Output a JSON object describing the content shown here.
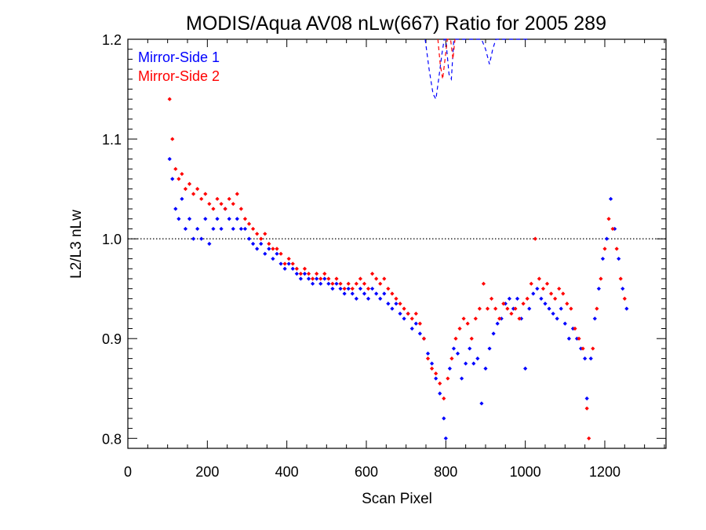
{
  "chart_data": {
    "type": "scatter",
    "title": "MODIS/Aqua AV08 nLw(667) Ratio for 2005 289",
    "xlabel": "Scan Pixel",
    "ylabel": "L2/L3 nLw",
    "xlim": [
      0,
      1354
    ],
    "ylim": [
      0.79,
      1.2
    ],
    "xticks": [
      0,
      200,
      400,
      600,
      800,
      1000,
      1200
    ],
    "yticks": [
      0.8,
      0.9,
      1.0,
      1.1,
      1.2
    ],
    "xtick_labels": [
      "0",
      "200",
      "400",
      "600",
      "800",
      "1000",
      "1200"
    ],
    "ytick_labels": [
      "0.8",
      "0.9",
      "1.0",
      "1.1",
      "1.2"
    ],
    "reference_line": {
      "y": 1.0,
      "style": "dotted",
      "color": "#000000"
    },
    "legend_position": "top-left",
    "series": [
      {
        "name": "Mirror-Side 1",
        "color": "#0000ff",
        "points": [
          [
            105,
            1.08
          ],
          [
            112,
            1.06
          ],
          [
            120,
            1.03
          ],
          [
            128,
            1.02
          ],
          [
            136,
            1.04
          ],
          [
            145,
            1.01
          ],
          [
            155,
            1.02
          ],
          [
            165,
            1.0
          ],
          [
            175,
            1.01
          ],
          [
            185,
            1.0
          ],
          [
            195,
            1.02
          ],
          [
            205,
            0.995
          ],
          [
            215,
            1.01
          ],
          [
            225,
            1.02
          ],
          [
            235,
            1.01
          ],
          [
            245,
            1.03
          ],
          [
            255,
            1.02
          ],
          [
            265,
            1.01
          ],
          [
            275,
            1.02
          ],
          [
            285,
            1.01
          ],
          [
            295,
            1.01
          ],
          [
            305,
            1.0
          ],
          [
            315,
            0.995
          ],
          [
            325,
            0.99
          ],
          [
            335,
            0.995
          ],
          [
            345,
            0.985
          ],
          [
            355,
            0.99
          ],
          [
            365,
            0.98
          ],
          [
            375,
            0.985
          ],
          [
            385,
            0.975
          ],
          [
            395,
            0.97
          ],
          [
            405,
            0.975
          ],
          [
            415,
            0.97
          ],
          [
            425,
            0.965
          ],
          [
            435,
            0.96
          ],
          [
            445,
            0.965
          ],
          [
            455,
            0.96
          ],
          [
            465,
            0.955
          ],
          [
            475,
            0.96
          ],
          [
            485,
            0.955
          ],
          [
            495,
            0.96
          ],
          [
            505,
            0.955
          ],
          [
            515,
            0.95
          ],
          [
            525,
            0.955
          ],
          [
            535,
            0.95
          ],
          [
            545,
            0.945
          ],
          [
            555,
            0.95
          ],
          [
            565,
            0.945
          ],
          [
            575,
            0.94
          ],
          [
            585,
            0.95
          ],
          [
            595,
            0.945
          ],
          [
            605,
            0.94
          ],
          [
            615,
            0.95
          ],
          [
            625,
            0.945
          ],
          [
            635,
            0.94
          ],
          [
            645,
            0.945
          ],
          [
            655,
            0.935
          ],
          [
            665,
            0.93
          ],
          [
            675,
            0.935
          ],
          [
            685,
            0.925
          ],
          [
            695,
            0.92
          ],
          [
            705,
            0.925
          ],
          [
            715,
            0.91
          ],
          [
            725,
            0.915
          ],
          [
            735,
            0.905
          ],
          [
            745,
            0.9
          ],
          [
            755,
            0.885
          ],
          [
            765,
            0.875
          ],
          [
            775,
            0.86
          ],
          [
            785,
            0.845
          ],
          [
            795,
            0.82
          ],
          [
            800,
            0.8
          ],
          [
            810,
            0.87
          ],
          [
            820,
            0.89
          ],
          [
            830,
            0.885
          ],
          [
            840,
            0.86
          ],
          [
            850,
            0.875
          ],
          [
            860,
            0.89
          ],
          [
            870,
            0.875
          ],
          [
            880,
            0.88
          ],
          [
            890,
            0.835
          ],
          [
            900,
            0.87
          ],
          [
            910,
            0.89
          ],
          [
            920,
            0.905
          ],
          [
            930,
            0.915
          ],
          [
            940,
            0.92
          ],
          [
            950,
            0.935
          ],
          [
            960,
            0.94
          ],
          [
            970,
            0.93
          ],
          [
            980,
            0.94
          ],
          [
            990,
            0.92
          ],
          [
            1000,
            0.87
          ],
          [
            1010,
            0.93
          ],
          [
            1020,
            0.945
          ],
          [
            1030,
            0.95
          ],
          [
            1040,
            0.94
          ],
          [
            1050,
            0.935
          ],
          [
            1060,
            0.93
          ],
          [
            1070,
            0.925
          ],
          [
            1080,
            0.92
          ],
          [
            1090,
            0.93
          ],
          [
            1100,
            0.915
          ],
          [
            1110,
            0.9
          ],
          [
            1120,
            0.91
          ],
          [
            1130,
            0.9
          ],
          [
            1140,
            0.89
          ],
          [
            1150,
            0.88
          ],
          [
            1155,
            0.84
          ],
          [
            1165,
            0.88
          ],
          [
            1175,
            0.92
          ],
          [
            1185,
            0.95
          ],
          [
            1195,
            0.98
          ],
          [
            1205,
            1.0
          ],
          [
            1215,
            1.04
          ],
          [
            1225,
            1.01
          ],
          [
            1235,
            0.98
          ],
          [
            1245,
            0.95
          ],
          [
            1255,
            0.93
          ]
        ]
      },
      {
        "name": "Mirror-Side 2",
        "color": "#ff0000",
        "points": [
          [
            105,
            1.14
          ],
          [
            112,
            1.1
          ],
          [
            120,
            1.07
          ],
          [
            128,
            1.06
          ],
          [
            136,
            1.065
          ],
          [
            145,
            1.05
          ],
          [
            155,
            1.055
          ],
          [
            165,
            1.045
          ],
          [
            175,
            1.05
          ],
          [
            185,
            1.04
          ],
          [
            195,
            1.045
          ],
          [
            205,
            1.035
          ],
          [
            215,
            1.03
          ],
          [
            225,
            1.04
          ],
          [
            235,
            1.035
          ],
          [
            245,
            1.03
          ],
          [
            255,
            1.04
          ],
          [
            265,
            1.035
          ],
          [
            275,
            1.045
          ],
          [
            285,
            1.03
          ],
          [
            295,
            1.02
          ],
          [
            305,
            1.015
          ],
          [
            315,
            1.01
          ],
          [
            325,
            1.005
          ],
          [
            335,
            1.0
          ],
          [
            345,
            1.005
          ],
          [
            355,
            0.995
          ],
          [
            365,
            0.99
          ],
          [
            375,
            0.99
          ],
          [
            385,
            0.985
          ],
          [
            395,
            0.975
          ],
          [
            405,
            0.98
          ],
          [
            415,
            0.975
          ],
          [
            425,
            0.97
          ],
          [
            435,
            0.965
          ],
          [
            445,
            0.97
          ],
          [
            455,
            0.965
          ],
          [
            465,
            0.96
          ],
          [
            475,
            0.965
          ],
          [
            485,
            0.96
          ],
          [
            495,
            0.965
          ],
          [
            505,
            0.96
          ],
          [
            515,
            0.955
          ],
          [
            525,
            0.96
          ],
          [
            535,
            0.955
          ],
          [
            545,
            0.95
          ],
          [
            555,
            0.955
          ],
          [
            565,
            0.95
          ],
          [
            575,
            0.955
          ],
          [
            585,
            0.96
          ],
          [
            595,
            0.955
          ],
          [
            605,
            0.95
          ],
          [
            615,
            0.965
          ],
          [
            625,
            0.96
          ],
          [
            635,
            0.955
          ],
          [
            645,
            0.96
          ],
          [
            655,
            0.95
          ],
          [
            665,
            0.945
          ],
          [
            675,
            0.94
          ],
          [
            685,
            0.935
          ],
          [
            695,
            0.93
          ],
          [
            705,
            0.925
          ],
          [
            715,
            0.92
          ],
          [
            725,
            0.925
          ],
          [
            735,
            0.915
          ],
          [
            745,
            0.9
          ],
          [
            755,
            0.88
          ],
          [
            765,
            0.87
          ],
          [
            775,
            0.865
          ],
          [
            785,
            0.855
          ],
          [
            795,
            0.84
          ],
          [
            805,
            0.86
          ],
          [
            815,
            0.88
          ],
          [
            825,
            0.9
          ],
          [
            835,
            0.91
          ],
          [
            845,
            0.92
          ],
          [
            855,
            0.915
          ],
          [
            865,
            0.9
          ],
          [
            875,
            0.92
          ],
          [
            885,
            0.93
          ],
          [
            895,
            0.955
          ],
          [
            905,
            0.93
          ],
          [
            915,
            0.94
          ],
          [
            925,
            0.93
          ],
          [
            935,
            0.92
          ],
          [
            945,
            0.935
          ],
          [
            955,
            0.93
          ],
          [
            965,
            0.925
          ],
          [
            975,
            0.93
          ],
          [
            985,
            0.92
          ],
          [
            995,
            0.935
          ],
          [
            1005,
            0.94
          ],
          [
            1015,
            0.955
          ],
          [
            1025,
            1.0
          ],
          [
            1035,
            0.96
          ],
          [
            1045,
            0.95
          ],
          [
            1055,
            0.955
          ],
          [
            1065,
            0.945
          ],
          [
            1075,
            0.94
          ],
          [
            1085,
            0.95
          ],
          [
            1095,
            0.945
          ],
          [
            1105,
            0.935
          ],
          [
            1115,
            0.93
          ],
          [
            1125,
            0.91
          ],
          [
            1135,
            0.9
          ],
          [
            1145,
            0.89
          ],
          [
            1155,
            0.83
          ],
          [
            1160,
            0.8
          ],
          [
            1170,
            0.89
          ],
          [
            1180,
            0.93
          ],
          [
            1190,
            0.96
          ],
          [
            1200,
            0.99
          ],
          [
            1210,
            1.02
          ],
          [
            1220,
            1.01
          ],
          [
            1230,
            0.99
          ],
          [
            1240,
            0.96
          ],
          [
            1250,
            0.94
          ]
        ]
      }
    ],
    "dashed_overlay": [
      {
        "series": "Mirror-Side 1",
        "color": "#0000ff",
        "points": [
          [
            748,
            1.2
          ],
          [
            758,
            1.17
          ],
          [
            768,
            1.145
          ],
          [
            775,
            1.14
          ],
          [
            782,
            1.16
          ],
          [
            790,
            1.185
          ],
          [
            796,
            1.2
          ],
          [
            800,
            1.2
          ],
          [
            808,
            1.165
          ],
          [
            814,
            1.16
          ],
          [
            820,
            1.2
          ],
          [
            890,
            1.2
          ],
          [
            900,
            1.19
          ],
          [
            910,
            1.175
          ],
          [
            918,
            1.19
          ],
          [
            926,
            1.2
          ],
          [
            1003,
            1.2
          ],
          [
            1010,
            1.2
          ]
        ]
      },
      {
        "series": "Mirror-Side 2",
        "color": "#ff0000",
        "points": [
          [
            780,
            1.2
          ],
          [
            786,
            1.175
          ],
          [
            792,
            1.16
          ],
          [
            798,
            1.18
          ],
          [
            804,
            1.2
          ],
          [
            812,
            1.2
          ],
          [
            818,
            1.18
          ],
          [
            823,
            1.2
          ]
        ]
      }
    ]
  }
}
